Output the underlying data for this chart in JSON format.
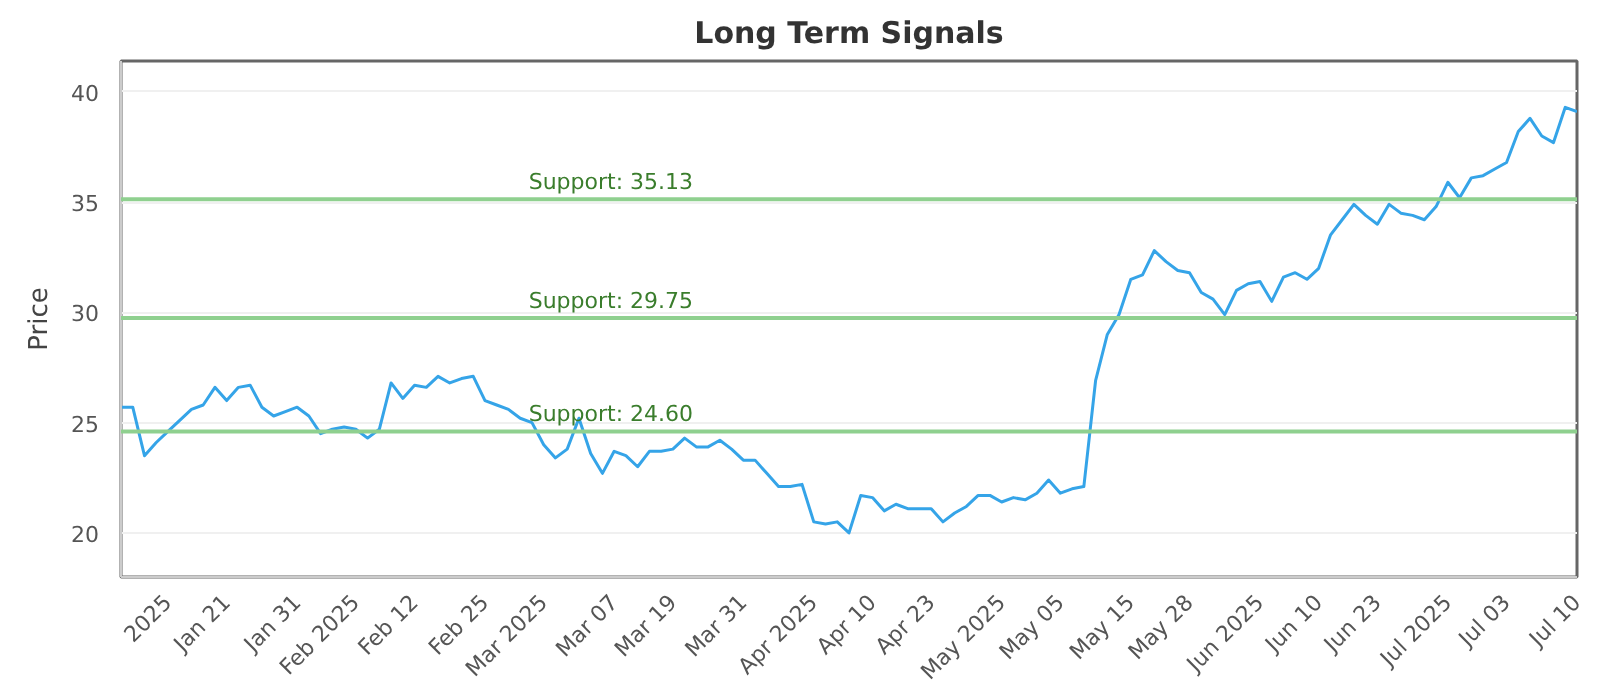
{
  "chart_data": {
    "type": "line",
    "title": "Long Term Signals",
    "ylabel": "Price",
    "categories": [
      null,
      null,
      null,
      null,
      "2025",
      null,
      null,
      null,
      null,
      "Jan 21",
      null,
      null,
      null,
      null,
      null,
      "Jan 31",
      null,
      null,
      null,
      null,
      "Feb 2025",
      null,
      null,
      null,
      null,
      "Feb 12",
      null,
      null,
      null,
      null,
      null,
      "Feb 25",
      null,
      null,
      null,
      null,
      "Mar 2025",
      null,
      null,
      null,
      null,
      null,
      "Mar 07",
      null,
      null,
      null,
      null,
      "Mar 19",
      null,
      null,
      null,
      null,
      null,
      "Mar 31",
      null,
      null,
      null,
      null,
      null,
      "Apr 2025",
      null,
      null,
      null,
      null,
      "Apr 10",
      null,
      null,
      null,
      null,
      "Apr 23",
      null,
      null,
      null,
      null,
      null,
      "May 2025",
      null,
      null,
      null,
      null,
      "May 05",
      null,
      null,
      null,
      null,
      null,
      "May 15",
      null,
      null,
      null,
      null,
      "May 28",
      null,
      null,
      null,
      null,
      null,
      "Jun 2025",
      null,
      null,
      null,
      null,
      "Jun 10",
      null,
      null,
      null,
      null,
      "Jun 23",
      null,
      null,
      null,
      null,
      null,
      "Jul 2025",
      null,
      null,
      null,
      null,
      "Jul 03",
      null,
      null,
      null,
      null,
      null,
      "Jul 10"
    ],
    "series": [
      {
        "color": "#35a4e8",
        "values": [
          25.7,
          25.7,
          23.5,
          24.1,
          24.6,
          25.1,
          25.6,
          25.8,
          26.6,
          26.0,
          26.6,
          26.7,
          25.7,
          25.3,
          25.5,
          25.7,
          25.3,
          24.5,
          24.7,
          24.8,
          24.7,
          24.3,
          24.7,
          26.8,
          26.1,
          26.7,
          26.6,
          27.1,
          26.8,
          27.0,
          27.1,
          26.0,
          25.8,
          25.6,
          25.2,
          25.0,
          24.0,
          23.4,
          23.8,
          25.2,
          23.6,
          22.7,
          23.7,
          23.5,
          23.0,
          23.7,
          23.7,
          23.8,
          24.3,
          23.9,
          23.9,
          24.2,
          23.8,
          23.3,
          23.3,
          22.7,
          22.1,
          22.1,
          22.2,
          20.5,
          20.4,
          20.5,
          20.0,
          21.7,
          21.6,
          21.0,
          21.3,
          21.1,
          21.1,
          21.1,
          20.5,
          20.9,
          21.2,
          21.7,
          21.7,
          21.4,
          21.6,
          21.5,
          21.8,
          22.4,
          21.8,
          22.0,
          22.1,
          26.9,
          29.0,
          29.9,
          31.5,
          31.7,
          32.8,
          32.3,
          31.9,
          31.8,
          30.9,
          30.6,
          29.9,
          31.0,
          31.3,
          31.4,
          30.5,
          31.6,
          31.8,
          31.5,
          32.0,
          33.5,
          34.2,
          34.9,
          34.4,
          34.0,
          34.9,
          34.5,
          34.4,
          34.2,
          34.8,
          35.9,
          35.2,
          36.1,
          36.2,
          36.5,
          36.8,
          38.2,
          38.8,
          38.0,
          37.7,
          39.3,
          39.1
        ]
      }
    ],
    "ylim": [
      18,
      41.4
    ],
    "yticks": [
      20,
      25,
      30,
      35,
      40
    ],
    "grid": "y",
    "marker": "none",
    "line_style": "solid",
    "ref_lines": [
      {
        "axis": "y",
        "value": 35.13,
        "label": "Support: 35.13",
        "color": "#8fd08f"
      },
      {
        "axis": "y",
        "value": 29.75,
        "label": "Support: 29.75",
        "color": "#8fd08f"
      },
      {
        "axis": "y",
        "value": 24.6,
        "label": "Support: 24.60",
        "color": "#8fd08f"
      }
    ]
  }
}
